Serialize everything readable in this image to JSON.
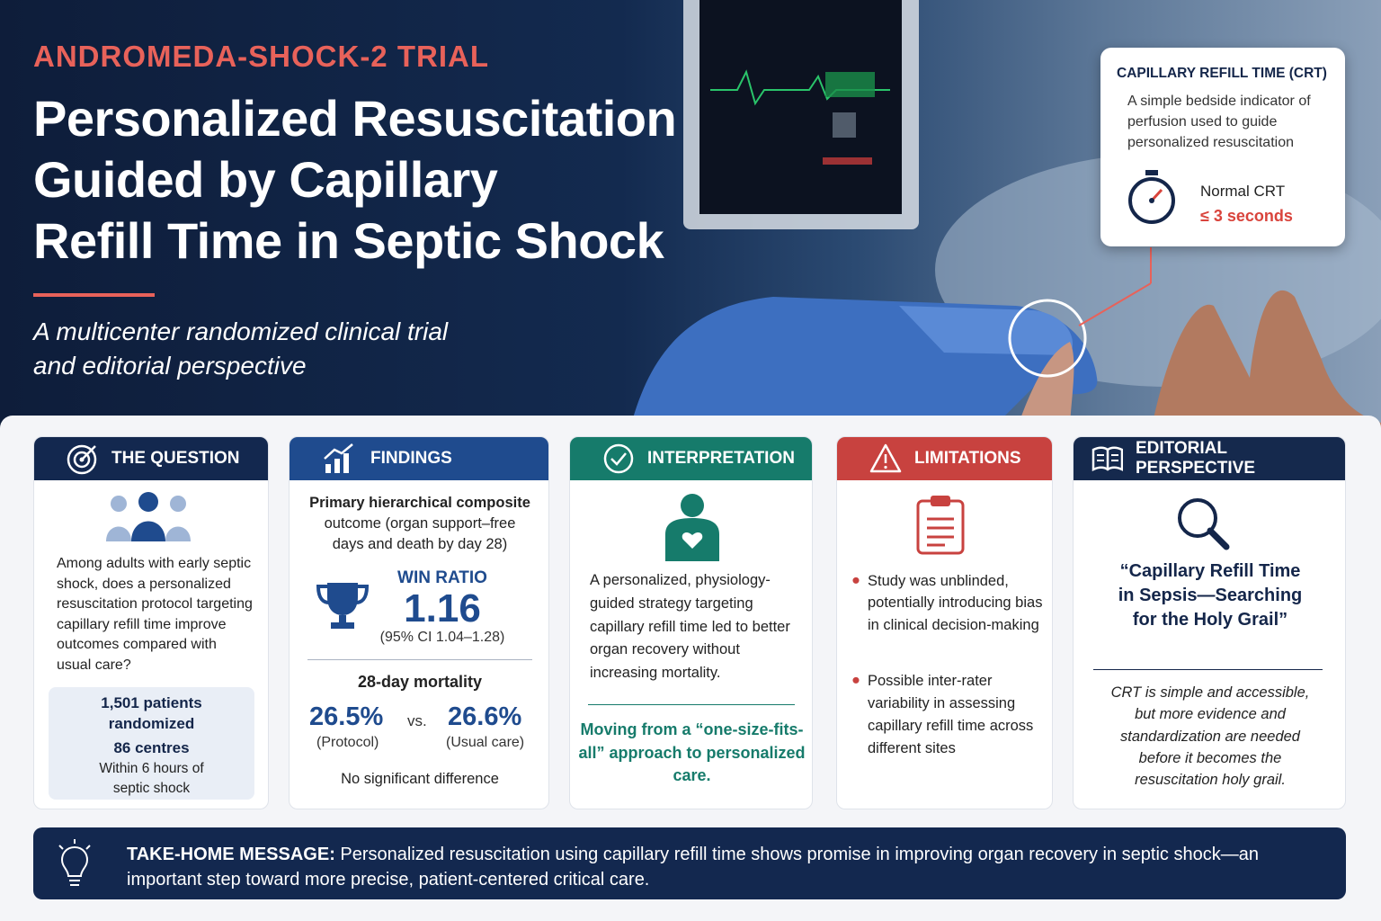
{
  "header": {
    "kicker": "ANDROMEDA-SHOCK-2 TRIAL",
    "title_lines": [
      "Personalized Resuscitation",
      "Guided by Capillary",
      "Refill Time in Septic Shock"
    ],
    "subtitle_lines": [
      "A multicenter randomized clinical trial",
      "and editorial perspective"
    ]
  },
  "crt_box": {
    "title": "CAPILLARY REFILL TIME (CRT)",
    "description": "A simple bedside indicator of perfusion used to guide personalized resuscitation",
    "normal_label": "Normal CRT",
    "normal_value": "≤ 3 seconds"
  },
  "question": {
    "heading": "THE QUESTION",
    "text": "Among adults with early septic shock, does a personalized resuscitation protocol targeting capillary refill time improve outcomes compared with usual care?",
    "patients": "1,501 patients randomized",
    "centres": "86 centres",
    "timing": "Within 6 hours of septic shock"
  },
  "findings": {
    "heading": "FINDINGS",
    "outcome_title": "Primary hierarchical composite",
    "outcome_text": "outcome (organ support–free days and death by day 28)",
    "win_ratio_label": "WIN RATIO",
    "win_ratio": "1.16",
    "ci": "(95% CI 1.04–1.28)",
    "mortality_title": "28-day mortality",
    "protocol_value": "26.5%",
    "protocol_label": "(Protocol)",
    "vs": "vs.",
    "usual_value": "26.6%",
    "usual_label": "(Usual care)",
    "note": "No significant difference"
  },
  "interpretation": {
    "heading": "INTERPRETATION",
    "text": "A personalized, physiology-guided strategy targeting capillary refill time led to better organ recovery without increasing mortality.",
    "highlight": "Moving from a “one-size-fits-all” approach to personalized care."
  },
  "limitations": {
    "heading": "LIMITATIONS",
    "bullets": [
      "Study was unblinded, potentially introducing bias in clinical decision-making",
      "Possible inter-rater variability in assessing capillary refill time across different sites"
    ]
  },
  "editorial": {
    "heading": "EDITORIAL PERSPECTIVE",
    "quote": "“Capillary Refill Time in Sepsis—Searching for the Holy Grail”",
    "text": "CRT is simple and accessible, but more evidence and standardization are needed before it becomes the resuscitation holy grail."
  },
  "take_home": {
    "label": "TAKE-HOME MESSAGE:",
    "text": "Personalized resuscitation using capillary refill time shows promise in improving organ recovery in septic shock—an important step toward more precise, patient-centered critical care."
  }
}
